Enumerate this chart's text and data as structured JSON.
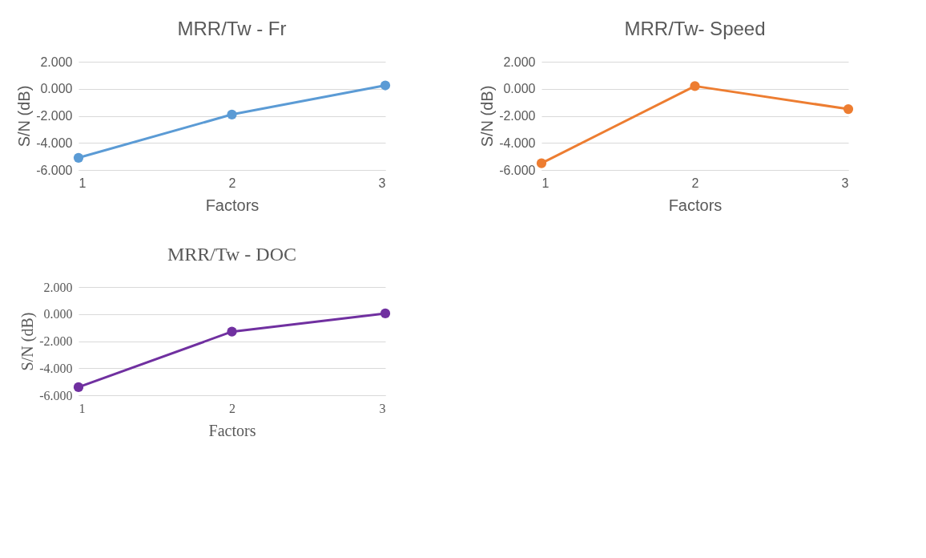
{
  "chart_data": [
    {
      "type": "line",
      "title": "MRR/Tw - Fr",
      "xlabel": "Factors",
      "ylabel": "S/N (dB)",
      "x": [
        1,
        2,
        3
      ],
      "xlim": [
        1,
        3
      ],
      "xticks": [
        1,
        2,
        3
      ],
      "ylim": [
        -6,
        2
      ],
      "yticks": [
        {
          "value": -6,
          "label": "-6.000"
        },
        {
          "value": -4,
          "label": "-4.000"
        },
        {
          "value": -2,
          "label": "-2.000"
        },
        {
          "value": 0,
          "label": "0.000"
        },
        {
          "value": 2,
          "label": "2.000"
        }
      ],
      "grid": "y",
      "marker": "circle",
      "line_style": "solid",
      "series": [
        {
          "color": "#5b9bd5",
          "values": [
            -5.1,
            -1.9,
            0.25
          ]
        }
      ]
    },
    {
      "type": "line",
      "title": "MRR/Tw- Speed",
      "xlabel": "Factors",
      "ylabel": "S/N (dB)",
      "x": [
        1,
        2,
        3
      ],
      "xlim": [
        1,
        3
      ],
      "xticks": [
        1,
        2,
        3
      ],
      "ylim": [
        -6,
        2
      ],
      "yticks": [
        {
          "value": -6,
          "label": "-6.000"
        },
        {
          "value": -4,
          "label": "-4.000"
        },
        {
          "value": -2,
          "label": "-2.000"
        },
        {
          "value": 0,
          "label": "0.000"
        },
        {
          "value": 2,
          "label": "2.000"
        }
      ],
      "grid": "y",
      "marker": "circle",
      "line_style": "solid",
      "series": [
        {
          "color": "#ed7d31",
          "values": [
            -5.5,
            0.2,
            -1.5
          ]
        }
      ]
    },
    {
      "type": "line",
      "title": "MRR/Tw - DOC",
      "xlabel": "Factors",
      "ylabel": "S/N (dB)",
      "x": [
        1,
        2,
        3
      ],
      "xlim": [
        1,
        3
      ],
      "xticks": [
        1,
        2,
        3
      ],
      "ylim": [
        -6,
        2
      ],
      "yticks": [
        {
          "value": -6,
          "label": "-6.000"
        },
        {
          "value": -4,
          "label": "-4.000"
        },
        {
          "value": -2,
          "label": "-2.000"
        },
        {
          "value": 0,
          "label": "0.000"
        },
        {
          "value": 2,
          "label": "2.000"
        }
      ],
      "grid": "y",
      "marker": "circle",
      "line_style": "solid",
      "series": [
        {
          "color": "#7030a0",
          "values": [
            -5.4,
            -1.3,
            0.05
          ]
        }
      ]
    }
  ]
}
